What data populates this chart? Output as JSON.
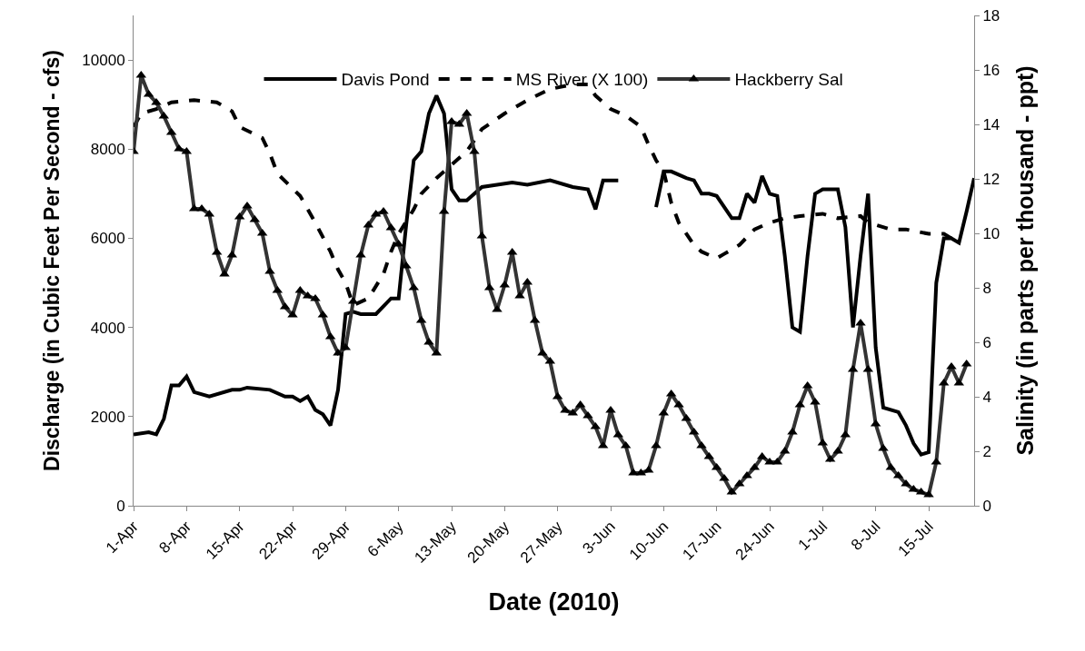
{
  "chart_data": {
    "type": "line",
    "xlabel": "Date (2010)",
    "ylabel": "Discharge (in Cubic Feet Per Second - cfs)",
    "y2label": "Salinity (in parts per thousand - ppt)",
    "x": [
      "2010-04-01",
      "2010-04-02",
      "2010-04-03",
      "2010-04-04",
      "2010-04-05",
      "2010-04-06",
      "2010-04-07",
      "2010-04-08",
      "2010-04-09",
      "2010-04-10",
      "2010-04-11",
      "2010-04-12",
      "2010-04-13",
      "2010-04-14",
      "2010-04-15",
      "2010-04-16",
      "2010-04-17",
      "2010-04-18",
      "2010-04-19",
      "2010-04-20",
      "2010-04-21",
      "2010-04-22",
      "2010-04-23",
      "2010-04-24",
      "2010-04-25",
      "2010-04-26",
      "2010-04-27",
      "2010-04-28",
      "2010-04-29",
      "2010-04-30",
      "2010-05-01",
      "2010-05-02",
      "2010-05-03",
      "2010-05-04",
      "2010-05-05",
      "2010-05-06",
      "2010-05-07",
      "2010-05-08",
      "2010-05-09",
      "2010-05-10",
      "2010-05-11",
      "2010-05-12",
      "2010-05-13",
      "2010-05-14",
      "2010-05-15",
      "2010-05-16",
      "2010-05-17",
      "2010-05-18",
      "2010-05-19",
      "2010-05-20",
      "2010-05-21",
      "2010-05-22",
      "2010-05-23",
      "2010-05-24",
      "2010-05-25",
      "2010-05-26",
      "2010-05-27",
      "2010-05-28",
      "2010-05-29",
      "2010-05-30",
      "2010-05-31",
      "2010-06-01",
      "2010-06-02",
      "2010-06-03",
      "2010-06-04",
      "2010-06-05",
      "2010-06-06",
      "2010-06-07",
      "2010-06-08",
      "2010-06-09",
      "2010-06-10",
      "2010-06-11",
      "2010-06-12",
      "2010-06-13",
      "2010-06-14",
      "2010-06-15",
      "2010-06-16",
      "2010-06-17",
      "2010-06-18",
      "2010-06-19",
      "2010-06-20",
      "2010-06-21",
      "2010-06-22",
      "2010-06-23",
      "2010-06-24",
      "2010-06-25",
      "2010-06-26",
      "2010-06-27",
      "2010-06-28",
      "2010-06-29",
      "2010-06-30",
      "2010-07-01",
      "2010-07-02",
      "2010-07-03",
      "2010-07-04",
      "2010-07-05",
      "2010-07-06",
      "2010-07-07",
      "2010-07-08",
      "2010-07-09",
      "2010-07-10",
      "2010-07-11",
      "2010-07-12",
      "2010-07-13",
      "2010-07-14",
      "2010-07-15",
      "2010-07-16",
      "2010-07-17",
      "2010-07-18",
      "2010-07-19",
      "2010-07-20"
    ],
    "series": [
      {
        "name": "Davis Pond",
        "color": "#000000",
        "line_style": "solid",
        "marker": "none",
        "x": [
          "2010-04-01",
          "2010-04-03",
          "2010-04-04",
          "2010-04-05",
          "2010-04-06",
          "2010-04-07",
          "2010-04-08",
          "2010-04-09",
          "2010-04-11",
          "2010-04-14",
          "2010-04-15",
          "2010-04-16",
          "2010-04-19",
          "2010-04-21",
          "2010-04-22",
          "2010-04-23",
          "2010-04-24",
          "2010-04-25",
          "2010-04-26",
          "2010-04-27",
          "2010-04-28",
          "2010-04-29",
          "2010-04-30",
          "2010-05-01",
          "2010-05-03",
          "2010-05-05",
          "2010-05-06",
          "2010-05-07",
          "2010-05-08",
          "2010-05-09",
          "2010-05-10",
          "2010-05-11",
          "2010-05-12",
          "2010-05-13",
          "2010-05-14",
          "2010-05-15",
          "2010-05-17",
          "2010-05-19",
          "2010-05-21",
          "2010-05-23",
          "2010-05-26",
          "2010-05-29",
          "2010-05-31",
          "2010-06-01",
          "2010-06-02",
          "2010-06-04",
          "2010-06-06",
          "2010-06-09",
          "2010-06-10",
          "2010-06-11",
          "2010-06-13",
          "2010-06-14",
          "2010-06-15",
          "2010-06-16",
          "2010-06-17",
          "2010-06-19",
          "2010-06-20",
          "2010-06-21",
          "2010-06-22",
          "2010-06-23",
          "2010-06-24",
          "2010-06-25",
          "2010-06-26",
          "2010-06-27",
          "2010-06-28",
          "2010-06-29",
          "2010-06-30",
          "2010-07-01",
          "2010-07-03",
          "2010-07-04",
          "2010-07-05",
          "2010-07-06",
          "2010-07-07",
          "2010-07-08",
          "2010-07-09",
          "2010-07-11",
          "2010-07-12",
          "2010-07-13",
          "2010-07-14",
          "2010-07-15",
          "2010-07-16",
          "2010-07-17",
          "2010-07-18",
          "2010-07-19",
          "2010-07-20",
          "2010-07-21"
        ],
        "values": [
          1600,
          1650,
          1600,
          1950,
          2700,
          2700,
          2900,
          2550,
          2450,
          2600,
          2600,
          2650,
          2600,
          2450,
          2450,
          2350,
          2450,
          2150,
          2050,
          1800,
          2600,
          4300,
          4350,
          4300,
          4300,
          4650,
          4650,
          6300,
          7750,
          7950,
          8800,
          9200,
          8800,
          7100,
          6850,
          6850,
          7150,
          7200,
          7250,
          7200,
          7300,
          7150,
          7100,
          6650,
          7300,
          7300,
          null,
          6700,
          7500,
          7500,
          7350,
          7300,
          7000,
          7000,
          6950,
          6450,
          6450,
          7000,
          6800,
          7400,
          7000,
          6950,
          5600,
          4000,
          3900,
          5600,
          7000,
          7100,
          7100,
          6250,
          4000,
          5600,
          7000,
          3550,
          2200,
          2100,
          1800,
          1400,
          1150,
          1200,
          5000,
          6000,
          6000,
          5900,
          6600,
          7350
        ]
      },
      {
        "name": "MS River (X 100)",
        "color": "#000000",
        "line_style": "dashed",
        "marker": "none",
        "x": [
          "2010-04-01",
          "2010-04-02",
          "2010-04-04",
          "2010-04-06",
          "2010-04-09",
          "2010-04-12",
          "2010-04-14",
          "2010-04-15",
          "2010-04-18",
          "2010-04-19",
          "2010-04-20",
          "2010-04-23",
          "2010-04-25",
          "2010-04-27",
          "2010-04-28",
          "2010-04-29",
          "2010-04-30",
          "2010-05-02",
          "2010-05-04",
          "2010-05-05",
          "2010-05-06",
          "2010-05-08",
          "2010-05-09",
          "2010-05-11",
          "2010-05-13",
          "2010-05-15",
          "2010-05-17",
          "2010-05-20",
          "2010-05-23",
          "2010-05-26",
          "2010-05-29",
          "2010-05-31",
          "2010-06-01",
          "2010-06-03",
          "2010-06-05",
          "2010-06-07",
          "2010-06-08",
          "2010-06-09",
          "2010-06-10",
          "2010-06-11",
          "2010-06-12",
          "2010-06-14",
          "2010-06-15",
          "2010-06-17",
          "2010-06-18",
          "2010-06-20",
          "2010-06-22",
          "2010-06-24",
          "2010-06-26",
          "2010-06-28",
          "2010-07-01",
          "2010-07-03",
          "2010-07-06",
          "2010-07-07",
          "2010-07-10",
          "2010-07-12",
          "2010-07-15",
          "2010-07-17",
          "2010-07-18"
        ],
        "values": [
          8500,
          8800,
          8900,
          9050,
          9100,
          9050,
          8850,
          8500,
          8250,
          7900,
          7450,
          6950,
          6350,
          5700,
          5300,
          5000,
          4500,
          4650,
          5200,
          5700,
          6100,
          6650,
          7000,
          7350,
          7650,
          7950,
          8450,
          8800,
          9100,
          9350,
          9450,
          9450,
          9200,
          8900,
          8750,
          8500,
          8100,
          7750,
          7500,
          6800,
          6350,
          5850,
          5700,
          5550,
          5650,
          5850,
          6200,
          6350,
          6450,
          6500,
          6550,
          6450,
          6500,
          6350,
          6200,
          6200,
          6100,
          6100,
          6000
        ]
      },
      {
        "name": "Hackberry Sal",
        "color": "#333333",
        "line_style": "solid",
        "marker": "triangle",
        "axis": "y2",
        "values": [
          13.0,
          15.8,
          15.1,
          14.8,
          14.3,
          13.7,
          13.1,
          13.0,
          10.9,
          10.9,
          10.7,
          9.3,
          8.5,
          9.2,
          10.6,
          11.0,
          10.5,
          10.0,
          8.6,
          7.9,
          7.3,
          7.0,
          7.9,
          7.7,
          7.6,
          7.0,
          6.2,
          5.6,
          5.8,
          7.5,
          9.2,
          10.3,
          10.7,
          10.8,
          10.2,
          9.6,
          8.8,
          8.0,
          6.8,
          6.0,
          5.6,
          10.8,
          14.1,
          14.0,
          14.4,
          13.0,
          9.9,
          8.0,
          7.2,
          8.1,
          9.3,
          7.7,
          8.2,
          6.8,
          5.6,
          5.3,
          4.0,
          3.5,
          3.4,
          3.7,
          3.3,
          2.9,
          2.2,
          3.5,
          2.6,
          2.2,
          1.2,
          1.2,
          1.3,
          2.2,
          3.4,
          4.1,
          3.7,
          3.2,
          2.7,
          2.2,
          1.8,
          1.4,
          1.0,
          0.5,
          0.8,
          1.1,
          1.4,
          1.8,
          1.6,
          1.6,
          2.0,
          2.7,
          3.7,
          4.4,
          3.8,
          2.3,
          1.7,
          2.0,
          2.6,
          5.0,
          6.7,
          5.0,
          3.0,
          2.1,
          1.4,
          1.1,
          0.8,
          0.6,
          0.5,
          0.4,
          1.6,
          4.5,
          5.1,
          4.5,
          5.2
        ]
      }
    ],
    "xlim": [
      "2010-04-01",
      "2010-07-21"
    ],
    "xticks": [
      {
        "value": "2010-04-01",
        "label": "1-Apr"
      },
      {
        "value": "2010-04-08",
        "label": "8-Apr"
      },
      {
        "value": "2010-04-15",
        "label": "15-Apr"
      },
      {
        "value": "2010-04-22",
        "label": "22-Apr"
      },
      {
        "value": "2010-04-29",
        "label": "29-Apr"
      },
      {
        "value": "2010-05-06",
        "label": "6-May"
      },
      {
        "value": "2010-05-13",
        "label": "13-May"
      },
      {
        "value": "2010-05-20",
        "label": "20-May"
      },
      {
        "value": "2010-05-27",
        "label": "27-May"
      },
      {
        "value": "2010-06-03",
        "label": "3-Jun"
      },
      {
        "value": "2010-06-10",
        "label": "10-Jun"
      },
      {
        "value": "2010-06-17",
        "label": "17-Jun"
      },
      {
        "value": "2010-06-24",
        "label": "24-Jun"
      },
      {
        "value": "2010-07-01",
        "label": "1-Jul"
      },
      {
        "value": "2010-07-08",
        "label": "8-Jul"
      },
      {
        "value": "2010-07-15",
        "label": "15-Jul"
      }
    ],
    "ylim": [
      0,
      11000
    ],
    "yticks": [
      0,
      2000,
      4000,
      6000,
      8000,
      10000
    ],
    "y2lim": [
      0,
      18
    ],
    "y2ticks": [
      0,
      2,
      4,
      6,
      8,
      10,
      12,
      14,
      16,
      18
    ],
    "grid": false,
    "legend": "top"
  }
}
